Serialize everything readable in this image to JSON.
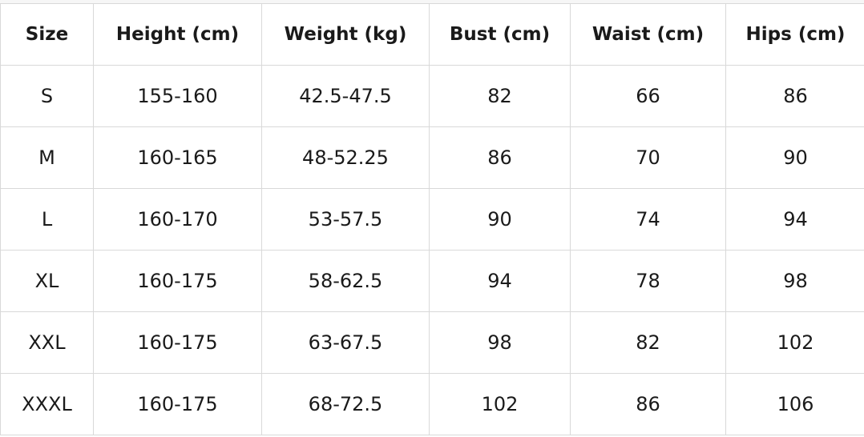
{
  "table": {
    "headers": [
      "Size",
      "Height (cm)",
      "Weight (kg)",
      "Bust (cm)",
      "Waist (cm)",
      "Hips (cm)"
    ],
    "rows": [
      [
        "S",
        "155-160",
        "42.5-47.5",
        "82",
        "66",
        "86"
      ],
      [
        "M",
        "160-165",
        "48-52.25",
        "86",
        "70",
        "90"
      ],
      [
        "L",
        "160-170",
        "53-57.5",
        "90",
        "74",
        "94"
      ],
      [
        "XL",
        "160-175",
        "58-62.5",
        "94",
        "78",
        "98"
      ],
      [
        "XXL",
        "160-175",
        "63-67.5",
        "98",
        "82",
        "102"
      ],
      [
        "XXXL",
        "160-175",
        "68-72.5",
        "102",
        "86",
        "106"
      ]
    ]
  }
}
